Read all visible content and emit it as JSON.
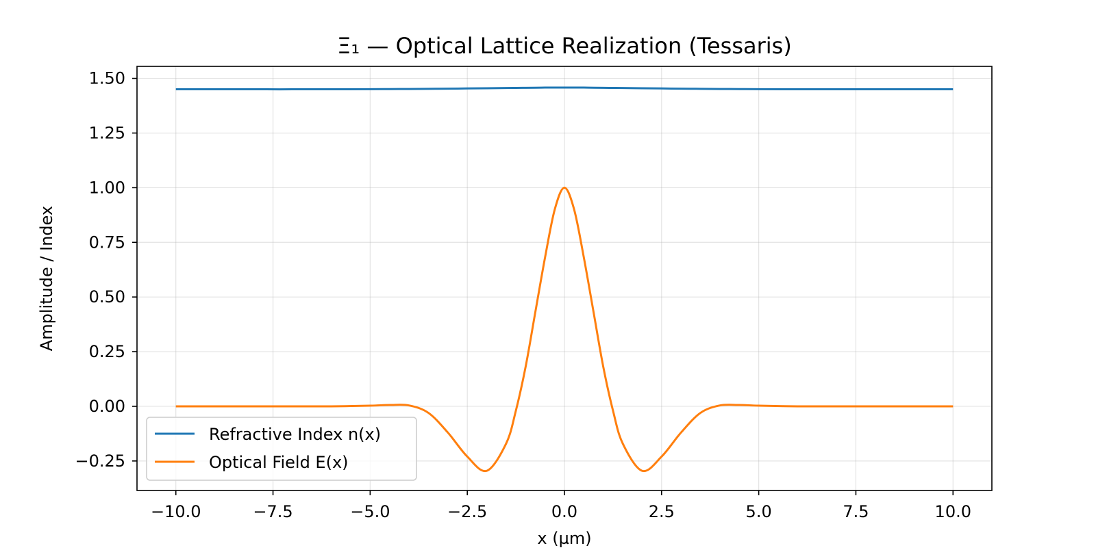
{
  "chart_data": {
    "type": "line",
    "title": "Ξ₁ — Optical Lattice Realization (Tessaris)",
    "xlabel": "x (µm)",
    "ylabel": "Amplitude / Index",
    "xlim": [
      -11.0,
      11.0
    ],
    "ylim": [
      -0.385,
      1.555
    ],
    "xticks": [
      -10.0,
      -7.5,
      -5.0,
      -2.5,
      0.0,
      2.5,
      5.0,
      7.5,
      10.0
    ],
    "xtick_labels": [
      "−10.0",
      "−7.5",
      "−5.0",
      "−2.5",
      "0.0",
      "2.5",
      "5.0",
      "7.5",
      "10.0"
    ],
    "yticks": [
      -0.25,
      0.0,
      0.25,
      0.5,
      0.75,
      1.0,
      1.25,
      1.5
    ],
    "ytick_labels": [
      "−0.25",
      "0.00",
      "0.25",
      "0.50",
      "0.75",
      "1.00",
      "1.25",
      "1.50"
    ],
    "grid": true,
    "legend_position": "lower-left",
    "x": [
      -10.0,
      -9.0,
      -8.0,
      -7.0,
      -6.0,
      -5.0,
      -4.5,
      -4.0,
      -3.5,
      -3.0,
      -2.5,
      -2.0,
      -1.5,
      -1.25,
      -1.0,
      -0.75,
      -0.5,
      -0.25,
      0.0,
      0.25,
      0.5,
      0.75,
      1.0,
      1.25,
      1.5,
      2.0,
      2.5,
      3.0,
      3.5,
      4.0,
      4.5,
      5.0,
      6.0,
      7.0,
      8.0,
      9.0,
      10.0
    ],
    "series": [
      {
        "name": "Refractive Index n(x)",
        "color": "#1f77b4",
        "values": [
          1.45,
          1.45,
          1.45,
          1.45,
          1.4502,
          1.4506,
          1.451,
          1.4515,
          1.4522,
          1.453,
          1.4539,
          1.4549,
          1.4559,
          1.4564,
          1.4569,
          1.4574,
          1.4578,
          1.4581,
          1.4582,
          1.4581,
          1.4578,
          1.4574,
          1.4569,
          1.4564,
          1.4559,
          1.4549,
          1.4539,
          1.453,
          1.4522,
          1.4515,
          1.451,
          1.4506,
          1.4502,
          1.45,
          1.45,
          1.45,
          1.45
        ]
      },
      {
        "name": "Optical Field E(x)",
        "color": "#ff7f0e",
        "values": [
          0.0,
          0.0,
          0.0,
          0.0,
          0.0,
          0.003,
          0.006,
          0.004,
          -0.03,
          -0.12,
          -0.23,
          -0.295,
          -0.17,
          -0.02,
          0.18,
          0.43,
          0.68,
          0.9,
          1.0,
          0.9,
          0.68,
          0.43,
          0.18,
          -0.02,
          -0.17,
          -0.295,
          -0.23,
          -0.12,
          -0.03,
          0.004,
          0.006,
          0.003,
          0.0,
          0.0,
          0.0,
          0.0,
          0.0
        ]
      }
    ]
  }
}
